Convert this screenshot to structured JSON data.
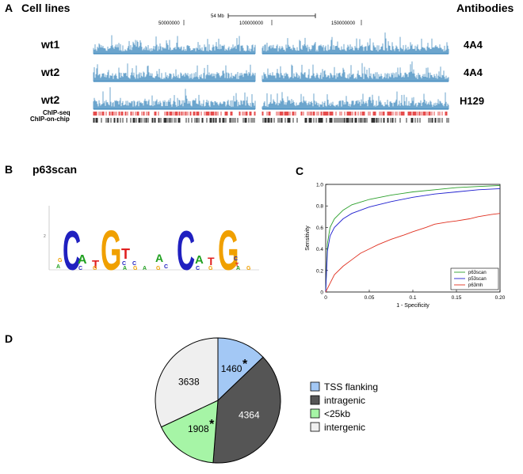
{
  "panelA": {
    "letter": "A",
    "left_header": "Cell lines",
    "right_header": "Antibodies",
    "scale_label": "54 Mb",
    "position_ticks": [
      "50000000",
      "100000000",
      "150000000"
    ],
    "tracks": [
      {
        "cell_line": "wt1",
        "antibody": "4A4"
      },
      {
        "cell_line": "wt2",
        "antibody": "4A4"
      },
      {
        "cell_line": "wt2",
        "antibody": "H129"
      }
    ],
    "annotation_tracks": [
      "ChIP-seq",
      "ChIP-on-chip"
    ],
    "colors": {
      "signal": "#2e7fb8",
      "chipseq": "#e02020",
      "chipchip": "#000000"
    }
  },
  "panelB": {
    "letter": "B",
    "title": "p63scan",
    "axis_label": "2",
    "left_logo_letters": [
      "C",
      "A",
      "T",
      "G",
      "T"
    ],
    "right_logo_letters": [
      "A",
      "C",
      "A",
      "T",
      "G"
    ]
  },
  "panelC": {
    "letter": "C",
    "chart_data": {
      "type": "line",
      "title": "",
      "xlabel": "1 - Specificity",
      "ylabel": "Sensitivity",
      "xlim": [
        0,
        0.2
      ],
      "ylim": [
        0,
        1.0
      ],
      "xticks": [
        "0",
        "0.05",
        "0.1",
        "0.15",
        "0.20"
      ],
      "yticks": [
        "0",
        "0.2",
        "0.4",
        "0.6",
        "0.8",
        "1.0"
      ],
      "legend_position": "bottom-right",
      "series": [
        {
          "name": "p63scan",
          "color": "#2ca02c",
          "x": [
            0,
            0.002,
            0.005,
            0.01,
            0.02,
            0.03,
            0.05,
            0.075,
            0.1,
            0.125,
            0.15,
            0.175,
            0.2
          ],
          "y": [
            0,
            0.45,
            0.6,
            0.68,
            0.76,
            0.81,
            0.86,
            0.9,
            0.93,
            0.95,
            0.97,
            0.98,
            0.99
          ]
        },
        {
          "name": "p53scan",
          "color": "#1f1fcf",
          "x": [
            0,
            0.002,
            0.005,
            0.01,
            0.02,
            0.03,
            0.05,
            0.075,
            0.1,
            0.125,
            0.15,
            0.175,
            0.2
          ],
          "y": [
            0,
            0.38,
            0.52,
            0.6,
            0.68,
            0.73,
            0.79,
            0.84,
            0.88,
            0.91,
            0.93,
            0.95,
            0.96
          ]
        },
        {
          "name": "p63mh",
          "color": "#e03020",
          "x": [
            0,
            0.005,
            0.01,
            0.02,
            0.03,
            0.04,
            0.05,
            0.06,
            0.075,
            0.09,
            0.1,
            0.115,
            0.125,
            0.14,
            0.15,
            0.165,
            0.175,
            0.19,
            0.2
          ],
          "y": [
            0,
            0.08,
            0.16,
            0.24,
            0.3,
            0.36,
            0.4,
            0.44,
            0.49,
            0.53,
            0.56,
            0.6,
            0.63,
            0.65,
            0.66,
            0.68,
            0.7,
            0.72,
            0.73
          ]
        }
      ]
    }
  },
  "panelD": {
    "letter": "D",
    "chart_data": {
      "type": "pie",
      "categories": [
        "TSS flanking",
        "intragenic",
        "<25kb",
        "intergenic"
      ],
      "values": [
        1460,
        4364,
        1908,
        3638
      ],
      "colors": [
        "#a3c8f5",
        "#555555",
        "#a6f5a6",
        "#efefef"
      ],
      "labels": [
        "1460",
        "4364",
        "1908",
        "3638"
      ],
      "asterisk": "*",
      "legend_position": "right"
    }
  }
}
